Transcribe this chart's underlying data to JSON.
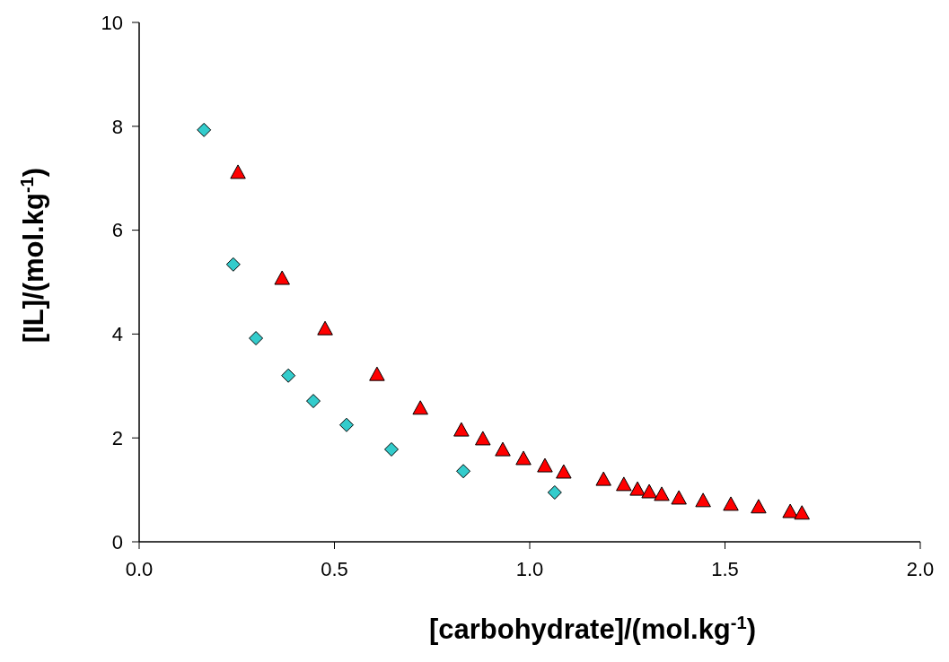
{
  "chart_data": {
    "type": "scatter",
    "xlabel": "[carbohydrate]/(mol.kg$^{-1}$)",
    "ylabel": "[IL]/(mol.kg$^{-1}$)",
    "xlim": [
      0,
      2
    ],
    "xticks": [
      {
        "value": 0,
        "label": "0.0"
      },
      {
        "value": 0.5,
        "label": "0.5"
      },
      {
        "value": 1,
        "label": "1.0"
      },
      {
        "value": 1.5,
        "label": "1.5"
      },
      {
        "value": 2,
        "label": "2.0"
      }
    ],
    "ylim": [
      0,
      10
    ],
    "yticks": [
      0,
      2,
      4,
      6,
      8,
      10
    ],
    "grid": false,
    "legend": false,
    "series": [
      {
        "color": "#33cccc",
        "marker": "diamond",
        "x": [
          0.166,
          0.241,
          0.299,
          0.382,
          0.446,
          0.531,
          0.646,
          0.83,
          1.064
        ],
        "values": [
          7.93,
          5.34,
          3.92,
          3.2,
          2.71,
          2.25,
          1.78,
          1.36,
          0.95
        ]
      },
      {
        "color": "#ff0000",
        "marker": "triangle",
        "x": [
          0.253,
          0.366,
          0.476,
          0.609,
          0.72,
          0.825,
          0.88,
          0.931,
          0.984,
          1.039,
          1.087,
          1.189,
          1.241,
          1.276,
          1.306,
          1.338,
          1.382,
          1.444,
          1.515,
          1.586,
          1.667,
          1.697
        ],
        "values": [
          7.1,
          5.06,
          4.09,
          3.21,
          2.56,
          2.14,
          1.97,
          1.76,
          1.59,
          1.45,
          1.33,
          1.19,
          1.09,
          1.0,
          0.95,
          0.9,
          0.83,
          0.78,
          0.71,
          0.66,
          0.57,
          0.54
        ]
      }
    ]
  }
}
